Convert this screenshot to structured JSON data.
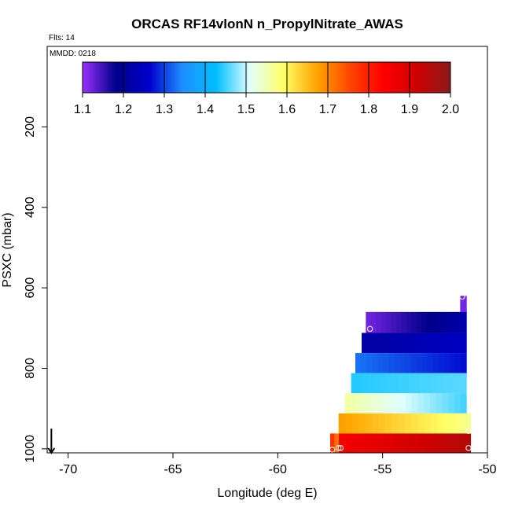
{
  "chart_data": {
    "type": "heatmap",
    "title": "ORCAS RF14vlonN n_PropylNitrate_AWAS",
    "flts_label": "Flts: 14",
    "mmdd_label": "MMDD: 0218",
    "xlabel": "Longitude (deg E)",
    "ylabel": "PSXC (mbar)",
    "xlim": [
      -71,
      -50
    ],
    "ylim": [
      1010,
      0
    ],
    "xticks": [
      -70,
      -65,
      -60,
      -55,
      -50
    ],
    "xtick_labels": [
      "-70",
      "-65",
      "-60",
      "-55",
      "-50"
    ],
    "yticks": [
      200,
      400,
      600,
      800,
      1000
    ],
    "ytick_labels": [
      "200",
      "400",
      "600",
      "800",
      "1000"
    ],
    "colorbar": {
      "range": [
        1.1,
        2.0
      ],
      "ticks": [
        1.1,
        1.2,
        1.3,
        1.4,
        1.5,
        1.6,
        1.7,
        1.8,
        1.9,
        2.0
      ],
      "tick_labels": [
        "1.1",
        "1.2",
        "1.3",
        "1.4",
        "1.5",
        "1.6",
        "1.7",
        "1.8",
        "1.9",
        "2.0"
      ],
      "stops": [
        "#9b30ff",
        "#00008b",
        "#0000cd",
        "#1e90ff",
        "#00bfff",
        "#e0ffff",
        "#ffff66",
        "#ffa500",
        "#ff4500",
        "#ff0000",
        "#cd0000",
        "#8b1a1a"
      ]
    },
    "bands": [
      {
        "p_top": 620,
        "p_bot": 660,
        "lon_start": -51.3,
        "lon_end": -51.0,
        "v_start": 1.12,
        "v_end": 1.12
      },
      {
        "p_top": 660,
        "p_bot": 712,
        "lon_start": -55.8,
        "lon_end": -51.0,
        "v_start": 1.12,
        "v_end": 1.22
      },
      {
        "p_top": 712,
        "p_bot": 762,
        "lon_start": -56.0,
        "lon_end": -51.0,
        "v_start": 1.21,
        "v_end": 1.25
      },
      {
        "p_top": 762,
        "p_bot": 812,
        "lon_start": -56.3,
        "lon_end": -51.0,
        "v_start": 1.33,
        "v_end": 1.27
      },
      {
        "p_top": 812,
        "p_bot": 862,
        "lon_start": -56.5,
        "lon_end": -51.0,
        "v_start": 1.44,
        "v_end": 1.46
      },
      {
        "p_top": 862,
        "p_bot": 912,
        "lon_start": -56.8,
        "lon_end": -51.0,
        "v_start": 1.56,
        "v_end": 1.45
      },
      {
        "p_top": 912,
        "p_bot": 962,
        "lon_start": -57.1,
        "lon_end": -50.8,
        "v_start": 1.68,
        "v_end": 1.57
      },
      {
        "p_top": 962,
        "p_bot": 1010,
        "lon_start": -57.1,
        "lon_end": -50.8,
        "v_start": 1.85,
        "v_end": 1.95
      }
    ],
    "extra_cells": [
      {
        "p_top": 962,
        "p_bot": 1010,
        "lon_start": -57.5,
        "lon_end": -57.3,
        "v": 1.78
      },
      {
        "p_top": 962,
        "p_bot": 1010,
        "lon_start": -57.3,
        "lon_end": -57.1,
        "v": 1.72
      }
    ],
    "markers": [
      {
        "lon": -51.2,
        "p": 622
      },
      {
        "lon": -55.6,
        "p": 702
      },
      {
        "lon": -50.9,
        "p": 956
      },
      {
        "lon": -57.1,
        "p": 998
      },
      {
        "lon": -57.0,
        "p": 998
      },
      {
        "lon": -57.4,
        "p": 1002
      },
      {
        "lon": -50.9,
        "p": 998
      }
    ],
    "arrow": {
      "lon": -70.8,
      "p_from": 950,
      "p_to": 1010
    }
  }
}
